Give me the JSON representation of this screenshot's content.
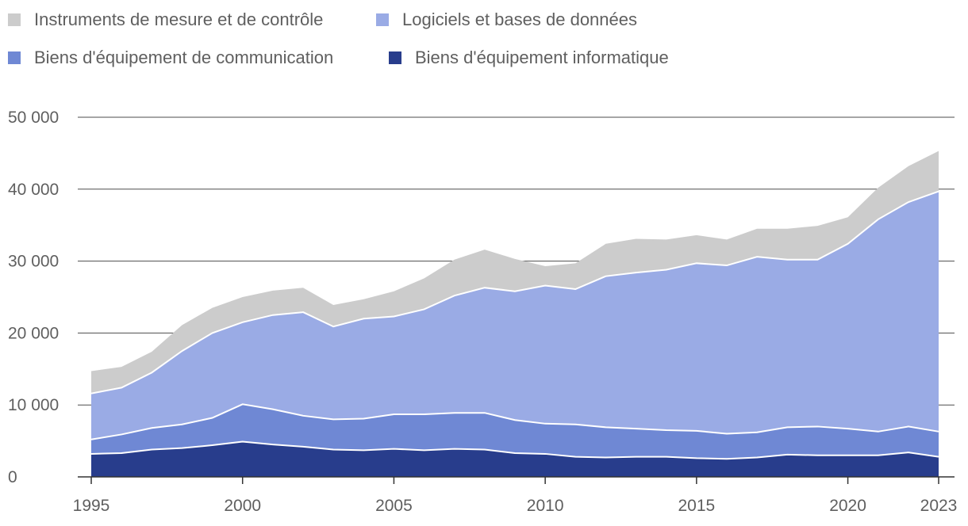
{
  "chart_data": {
    "type": "area",
    "stacked": true,
    "title": "",
    "xlabel": "",
    "ylabel": "",
    "ylim": [
      0,
      50000
    ],
    "y_ticks": [
      {
        "value": 0,
        "label": "0"
      },
      {
        "value": 10000,
        "label": "10 000"
      },
      {
        "value": 20000,
        "label": "20 000"
      },
      {
        "value": 30000,
        "label": "30 000"
      },
      {
        "value": 40000,
        "label": "40 000"
      },
      {
        "value": 50000,
        "label": "50 000"
      }
    ],
    "x_ticks": [
      {
        "value": 1995,
        "label": "1995"
      },
      {
        "value": 2000,
        "label": "2000"
      },
      {
        "value": 2005,
        "label": "2005"
      },
      {
        "value": 2010,
        "label": "2010"
      },
      {
        "value": 2015,
        "label": "2015"
      },
      {
        "value": 2020,
        "label": "2020"
      },
      {
        "value": 2023,
        "label": "2023"
      }
    ],
    "x": [
      1995,
      1996,
      1997,
      1998,
      1999,
      2000,
      2001,
      2002,
      2003,
      2004,
      2005,
      2006,
      2007,
      2008,
      2009,
      2010,
      2011,
      2012,
      2013,
      2014,
      2015,
      2016,
      2017,
      2018,
      2019,
      2020,
      2021,
      2022,
      2023
    ],
    "legend_position": "top-left",
    "series": [
      {
        "name": "Biens d'équipement informatique",
        "color": "#283d8c",
        "values": [
          3200,
          3300,
          3800,
          4000,
          4400,
          4900,
          4500,
          4200,
          3800,
          3700,
          3900,
          3700,
          3900,
          3800,
          3300,
          3200,
          2800,
          2700,
          2800,
          2800,
          2600,
          2500,
          2700,
          3100,
          3000,
          3000,
          3000,
          3400,
          2800
        ]
      },
      {
        "name": "Biens d'équipement de communication",
        "color": "#6f88d4",
        "values": [
          2000,
          2600,
          3000,
          3300,
          3800,
          5200,
          4900,
          4300,
          4200,
          4400,
          4800,
          5000,
          5000,
          5100,
          4600,
          4200,
          4500,
          4200,
          3900,
          3700,
          3800,
          3500,
          3500,
          3800,
          4000,
          3700,
          3300,
          3600,
          3500
        ]
      },
      {
        "name": "Logiciels et bases de données",
        "color": "#9aabe5",
        "values": [
          6400,
          6500,
          7700,
          10200,
          11800,
          11400,
          13100,
          14400,
          12900,
          13900,
          13600,
          14600,
          16300,
          17400,
          17900,
          19200,
          18800,
          21000,
          21700,
          22300,
          23300,
          23400,
          24400,
          23300,
          23200,
          25700,
          29500,
          31200,
          33400
        ]
      },
      {
        "name": "Instruments de mesure et de contrôle",
        "color": "#cccccc",
        "values": [
          3100,
          2900,
          2900,
          3600,
          3500,
          3500,
          3400,
          3400,
          3000,
          2700,
          3500,
          4300,
          5000,
          5300,
          4500,
          2700,
          3600,
          4500,
          4700,
          4200,
          3900,
          3600,
          3900,
          4300,
          4700,
          3700,
          4400,
          5000,
          5600
        ]
      }
    ]
  },
  "legend": [
    {
      "label": "Instruments de mesure et de contrôle",
      "color": "#cccccc"
    },
    {
      "label": "Logiciels et bases de données",
      "color": "#9aabe5"
    },
    {
      "label": "Biens d'équipement de communication",
      "color": "#6f88d4"
    },
    {
      "label": "Biens d'équipement informatique",
      "color": "#283d8c"
    }
  ]
}
